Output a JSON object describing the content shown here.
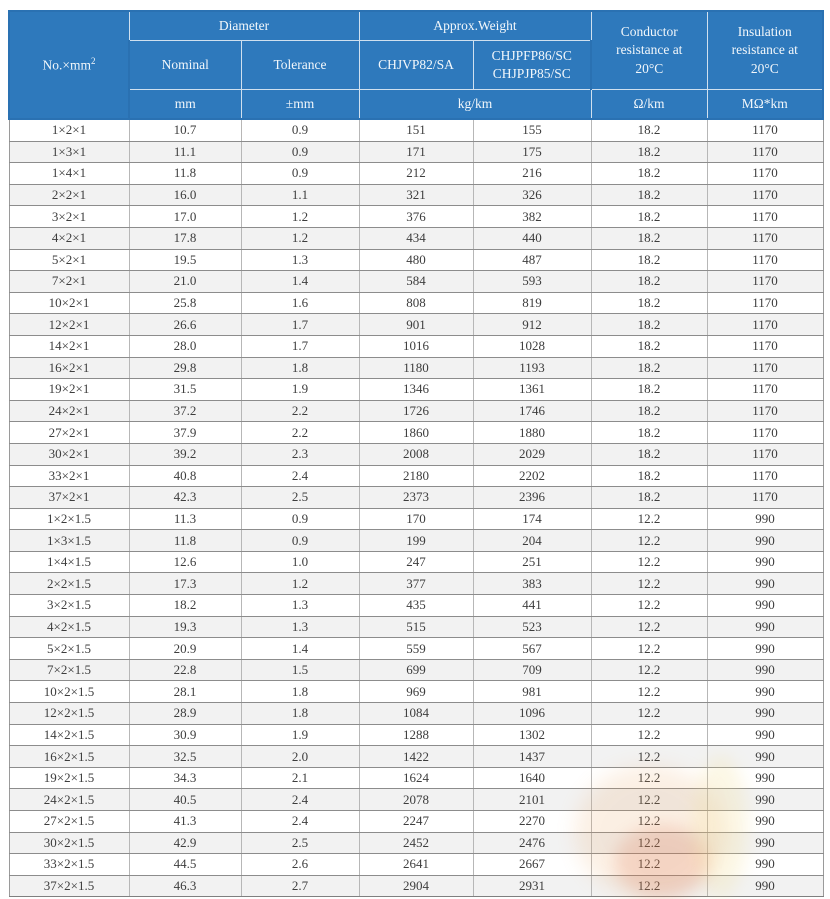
{
  "colors": {
    "header_bg": "#2e79bc",
    "header_text": "#f2f7fb",
    "row_bg": "#ffffff",
    "row_alt_bg": "#f2f2f2",
    "border_dark": "#8c8c8c",
    "border_light": "#b7b7b7",
    "watermark_orange": "#eba25a",
    "watermark_red": "#d96038",
    "watermark_yellow": "#f2dd8e"
  },
  "table": {
    "header": {
      "col_no": "No.×mm",
      "col_no_sup": "2",
      "diameter": "Diameter",
      "approx_weight": "Approx.Weight",
      "nominal": "Nominal",
      "tolerance": "Tolerance",
      "chjvp": "CHJVP82/SA",
      "chjpfp_line1": "CHJPFP86/SC",
      "chjpfp_line2": "CHJPJP85/SC",
      "conductor": "Conductor resistance at 20°C",
      "insulation": "Insulation resistance at 20°C",
      "unit_mm": "mm",
      "unit_pm_mm": "±mm",
      "unit_kgkm": "kg/km",
      "unit_ohmkm": "Ω/km",
      "unit_mohmkm": "MΩ*km"
    },
    "rows": [
      [
        "1×2×1",
        "10.7",
        "0.9",
        "151",
        "155",
        "18.2",
        "1170"
      ],
      [
        "1×3×1",
        "11.1",
        "0.9",
        "171",
        "175",
        "18.2",
        "1170"
      ],
      [
        "1×4×1",
        "11.8",
        "0.9",
        "212",
        "216",
        "18.2",
        "1170"
      ],
      [
        "2×2×1",
        "16.0",
        "1.1",
        "321",
        "326",
        "18.2",
        "1170"
      ],
      [
        "3×2×1",
        "17.0",
        "1.2",
        "376",
        "382",
        "18.2",
        "1170"
      ],
      [
        "4×2×1",
        "17.8",
        "1.2",
        "434",
        "440",
        "18.2",
        "1170"
      ],
      [
        "5×2×1",
        "19.5",
        "1.3",
        "480",
        "487",
        "18.2",
        "1170"
      ],
      [
        "7×2×1",
        "21.0",
        "1.4",
        "584",
        "593",
        "18.2",
        "1170"
      ],
      [
        "10×2×1",
        "25.8",
        "1.6",
        "808",
        "819",
        "18.2",
        "1170"
      ],
      [
        "12×2×1",
        "26.6",
        "1.7",
        "901",
        "912",
        "18.2",
        "1170"
      ],
      [
        "14×2×1",
        "28.0",
        "1.7",
        "1016",
        "1028",
        "18.2",
        "1170"
      ],
      [
        "16×2×1",
        "29.8",
        "1.8",
        "1180",
        "1193",
        "18.2",
        "1170"
      ],
      [
        "19×2×1",
        "31.5",
        "1.9",
        "1346",
        "1361",
        "18.2",
        "1170"
      ],
      [
        "24×2×1",
        "37.2",
        "2.2",
        "1726",
        "1746",
        "18.2",
        "1170"
      ],
      [
        "27×2×1",
        "37.9",
        "2.2",
        "1860",
        "1880",
        "18.2",
        "1170"
      ],
      [
        "30×2×1",
        "39.2",
        "2.3",
        "2008",
        "2029",
        "18.2",
        "1170"
      ],
      [
        "33×2×1",
        "40.8",
        "2.4",
        "2180",
        "2202",
        "18.2",
        "1170"
      ],
      [
        "37×2×1",
        "42.3",
        "2.5",
        "2373",
        "2396",
        "18.2",
        "1170"
      ],
      [
        "1×2×1.5",
        "11.3",
        "0.9",
        "170",
        "174",
        "12.2",
        "990"
      ],
      [
        "1×3×1.5",
        "11.8",
        "0.9",
        "199",
        "204",
        "12.2",
        "990"
      ],
      [
        "1×4×1.5",
        "12.6",
        "1.0",
        "247",
        "251",
        "12.2",
        "990"
      ],
      [
        "2×2×1.5",
        "17.3",
        "1.2",
        "377",
        "383",
        "12.2",
        "990"
      ],
      [
        "3×2×1.5",
        "18.2",
        "1.3",
        "435",
        "441",
        "12.2",
        "990"
      ],
      [
        "4×2×1.5",
        "19.3",
        "1.3",
        "515",
        "523",
        "12.2",
        "990"
      ],
      [
        "5×2×1.5",
        "20.9",
        "1.4",
        "559",
        "567",
        "12.2",
        "990"
      ],
      [
        "7×2×1.5",
        "22.8",
        "1.5",
        "699",
        "709",
        "12.2",
        "990"
      ],
      [
        "10×2×1.5",
        "28.1",
        "1.8",
        "969",
        "981",
        "12.2",
        "990"
      ],
      [
        "12×2×1.5",
        "28.9",
        "1.8",
        "1084",
        "1096",
        "12.2",
        "990"
      ],
      [
        "14×2×1.5",
        "30.9",
        "1.9",
        "1288",
        "1302",
        "12.2",
        "990"
      ],
      [
        "16×2×1.5",
        "32.5",
        "2.0",
        "1422",
        "1437",
        "12.2",
        "990"
      ],
      [
        "19×2×1.5",
        "34.3",
        "2.1",
        "1624",
        "1640",
        "12.2",
        "990"
      ],
      [
        "24×2×1.5",
        "40.5",
        "2.4",
        "2078",
        "2101",
        "12.2",
        "990"
      ],
      [
        "27×2×1.5",
        "41.3",
        "2.4",
        "2247",
        "2270",
        "12.2",
        "990"
      ],
      [
        "30×2×1.5",
        "42.9",
        "2.5",
        "2452",
        "2476",
        "12.2",
        "990"
      ],
      [
        "33×2×1.5",
        "44.5",
        "2.6",
        "2641",
        "2667",
        "12.2",
        "990"
      ],
      [
        "37×2×1.5",
        "46.3",
        "2.7",
        "2904",
        "2931",
        "12.2",
        "990"
      ]
    ]
  }
}
